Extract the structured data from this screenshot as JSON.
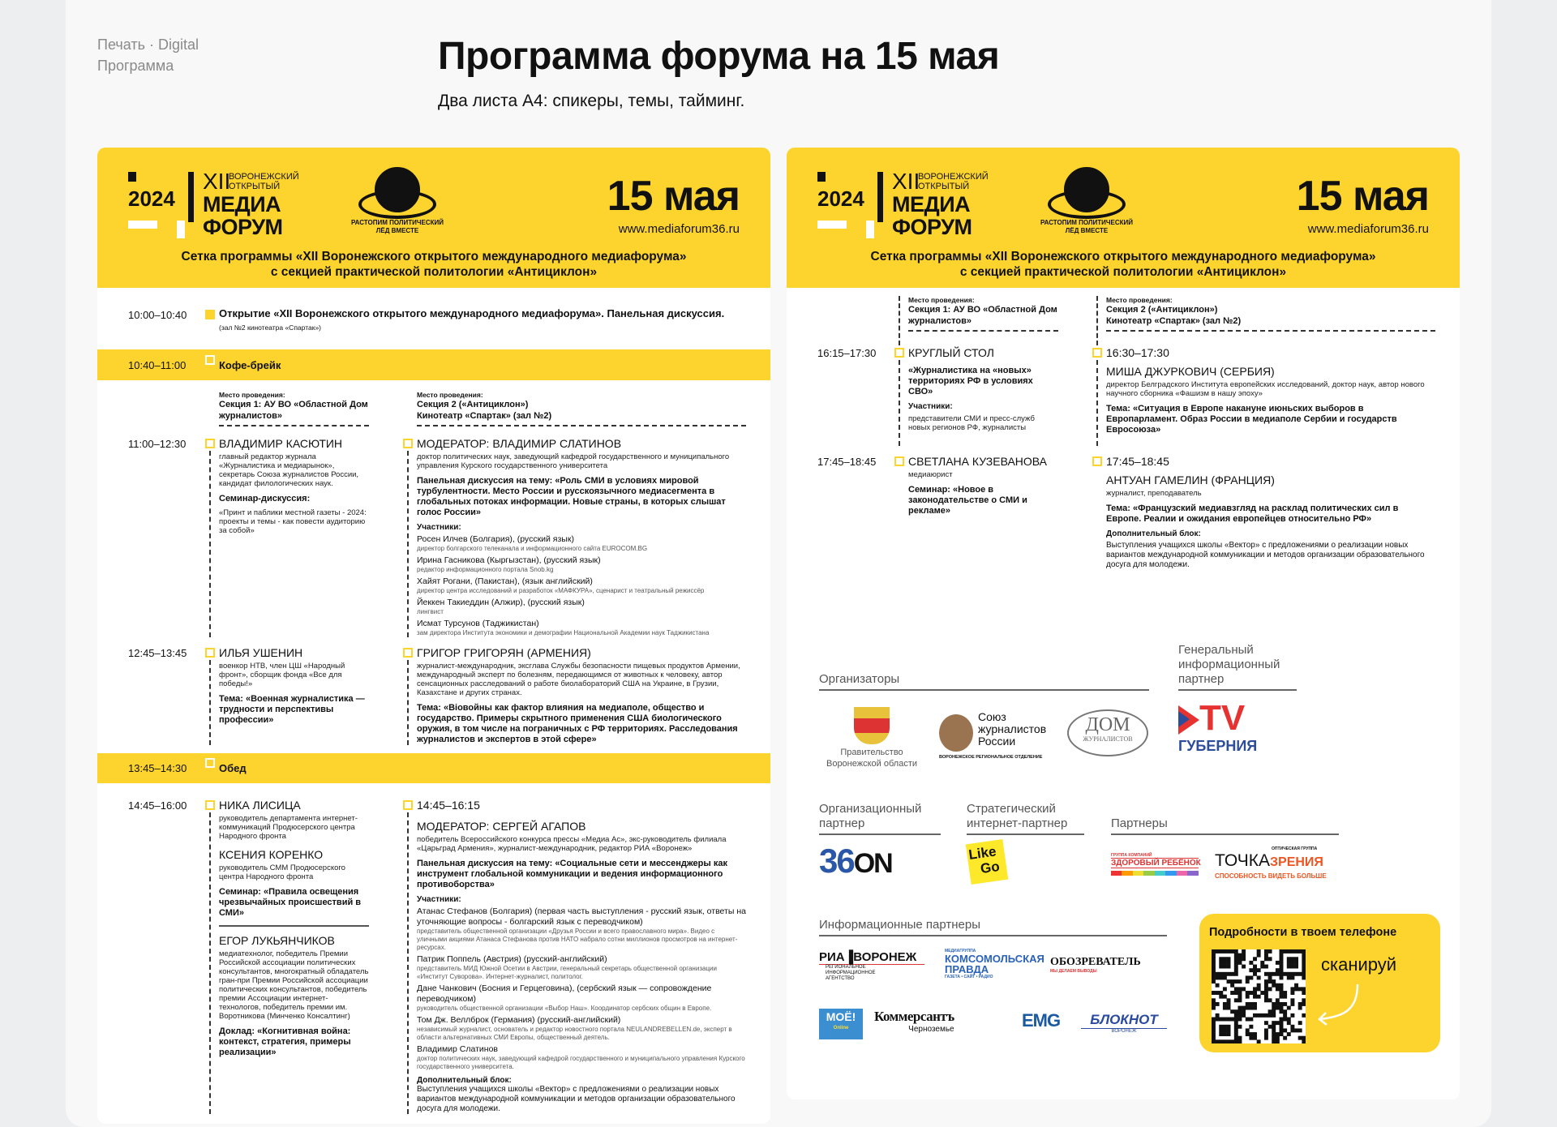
{
  "top": {
    "crumb1": "Печать · Digital",
    "crumb2": "Программа",
    "title": "Программа форума на 15 мая",
    "subtitle": "Два листа А4: спикеры, темы, тайминг."
  },
  "header": {
    "year": "2024",
    "roman": "XII",
    "vo": "ВОРОНЕЖСКИЙ",
    "otk": "ОТКРЫТЫЙ",
    "media": "МЕДИА",
    "forum": "ФОРУМ",
    "emblem_top": "ВОРОНЕЖ 2024",
    "emblem_name": "\"Антициклон\"",
    "emblem_motto": "РАСТОПИМ ПОЛИТИЧЕСКИЙ ЛЁД ВМЕСТЕ",
    "date": "15 мая",
    "url": "www.mediaforum36.ru",
    "title1": "Сетка программы «XII Воронежского открытого международного медиафорума»",
    "title2": "с секцией практической политологии «Антициклон»",
    "color": "#fdd42e"
  },
  "venues": {
    "label": "Место проведения:",
    "s1": "Секция 1: АУ ВО «Областной Дом журналистов»",
    "s2a": "Секция 2 («Антициклон»)",
    "s2b": "Кинотеатр «Спартак» (зал №2)"
  },
  "left": {
    "opening": {
      "time": "10:00–10:40",
      "title": "Открытие «XII Воронежского открытого международного медиафорума». Панельная дискуссия.",
      "place": "(зал №2 кинотеатра «Спартак»)"
    },
    "coffee": {
      "time": "10:40–11:00",
      "label": "Кофе-брейк"
    },
    "s1100": {
      "time": "11:00–12:30",
      "c1": {
        "name": "Владимир Касютин",
        "desc": "главный редактор журнала «Журналистика и медиарынок», секретарь Союза журналистов России, кандидат филологических наук.",
        "type": "Семинар-дискуссия:",
        "topic": "«Принт и паблики местной газеты - 2024: проекты и темы - как повести аудиторию за собой»"
      },
      "c2": {
        "name": "Модератор: Владимир Слатинов",
        "desc": "доктор политических наук, заведующий кафедрой государственного и муниципального управления Курского государственного университета",
        "topic": "Панельная дискуссия на тему: «Роль СМИ в условиях мировой турбулентности. Место России и русскоязычного медиасегмента в глобальных потоках информации. Новые страны, в которых слышат голос России»",
        "plabel": "Участники:",
        "participants": [
          {
            "n": "Росен Илчев (Болгария), (русский язык)",
            "d": "директор болгарского телеканала и информационного сайта EUROCOM.BG"
          },
          {
            "n": "Ирина Гасникова (Кыргызстан), (русский язык)",
            "d": "редактор информационного портала Snob.kg"
          },
          {
            "n": "Хайят Рогани, (Пакистан), (язык английский)",
            "d": "директор центра исследований и разработок «МАФКУРА», сценарист и театральный режиссёр"
          },
          {
            "n": "Йеккен Такиеддин (Алжир), (русский язык)",
            "d": "лингвист"
          },
          {
            "n": "Исмат Турсунов (Таджикистан)",
            "d": "зам директора Института экономики и демографии Национальной Академии наук Таджикистана"
          }
        ]
      }
    },
    "s1245": {
      "time": "12:45–13:45",
      "c1": {
        "name": "Илья Ушенин",
        "desc": "военкор НТВ, член ЦШ «Народный фронт», сборщик фонда «Все для победы!»",
        "topic": "Тема: «Военная журналистика — трудности и перспективы профессии»"
      },
      "c2": {
        "name": "Григор Григорян (Армения)",
        "desc": "журналист-международник, экcглава Службы безопасности пищевых продуктов Армении, международный эксперт по болезням, передающимся от животных к человеку, автор сенсационных расследований о работе биолабораторий США на Украине, в Грузии, Казахстане и других странах.",
        "topic": "Тема: «Biовойны как фактор влияния на медиаполе, общество и государство. Примеры скрытного применения США биологического оружия, в том числе на пограничных с РФ территориях. Расследования журналистов и экспертов в этой сфере»"
      }
    },
    "lunch": {
      "time": "13:45–14:30",
      "label": "Обед"
    },
    "s1445": {
      "time": "14:45–16:00",
      "c1": [
        {
          "name": "Ника Лисица",
          "desc": "руководитель департамента интернет-коммуникаций Продюсерского центра Народного фронта"
        },
        {
          "name": "Ксения Коренко",
          "desc": "руководитель СММ Продюсерского центра Народного фронта",
          "topic": "Семинар: «Правила освещения чрезвычайных происшествий в СМИ»"
        },
        {
          "name": "Егор Лукьянчиков",
          "desc": "медиатехнолог, победитель Премии Российской ассоциации политических консультантов, многократный обладатель гран-при Премии Российской ассоциации политических консультантов, победитель премии Ассоциации интернет-технологов, победитель премии им. Воротникова (Минченко Консалтинг)",
          "topic": "Доклад: «Когнитивная война: контекст, стратегия, примеры реализации»"
        }
      ],
      "c2": {
        "time": "14:45–16:15",
        "name": "Модератор: Сергей Агапов",
        "desc": "победитель Всероссийского конкурса прессы «Медиа Ас», экс-руководитель филиала «Царьград Армения», журналист-международник, редактор РИА «Воронеж»",
        "topic": "Панельная дискуссия на тему: «Социальные сети и мессенджеры как инструмент глобальной коммуникации и ведения информационного противоборства»",
        "plabel": "Участники:",
        "participants": [
          {
            "n": "Атанас Стефанов (Болгария) (первая часть выступления - русский язык, ответы на уточняющие вопросы - болгарский язык с переводчиком)",
            "d": "представитель общественной организации «Друзья России и всего православного мира». Видео с уличными акциями Атанаса Стефанова против НАТО набрало сотни миллионов просмотров на интернет-ресурсах."
          },
          {
            "n": "Патрик Поппель (Австрия) (русский-английский)",
            "d": "представитель МИД Южной Осетии в Австрии, генеральный секретарь общественной организации «Институт Суворова». Интернет-журналист, политолог."
          },
          {
            "n": "Дане Чанкович (Босния и Герцеговина), (сербский язык — сопровождение переводчиком)",
            "d": "руководитель общественной организации «Выбор Наш». Координатор сербских общин в Европе."
          },
          {
            "n": "Том Дж. Веллброк (Германия) (русский-английский)",
            "d": "независимый журналист, основатель и редактор новостного портала NEULANDREBELLEN.de, эксперт в области альтернативных СМИ Европы, общественный деятель."
          },
          {
            "n": "Владимир Слатинов",
            "d": "доктор политических наук, заведующий кафедрой государственного и муниципального управления Курского государственного университета."
          }
        ],
        "extra_label": "Дополнительный блок:",
        "extra": "Выступления учащихся школы «Вектор» с предложениями о реализации новых вариантов международной коммуникации и методов организации образовательного досуга для молодежи."
      }
    }
  },
  "right": {
    "s1615": {
      "time": "16:15–17:30",
      "c1": {
        "name": "Круглый стол",
        "topic": "«Журналистика на «новых» территориях РФ в условиях СВО»",
        "plabel": "Участники:",
        "participants": "представители СМИ и пресс-служб новых регионов РФ, журналисты"
      },
      "c2": {
        "time": "16:30–17:30",
        "name": "Миша Джуркович (Сербия)",
        "desc": "директор Белградского Института европейских исследований, доктор наук, автор нового научного сборника «Фашизм в нашу эпоху»",
        "topic": "Тема: «Ситуация в Европе накануне июньских выборов в Европарламент. Образ России в медиаполе Сербии и государств Евросоюза»"
      }
    },
    "s1745": {
      "time": "17:45–18:45",
      "c1": {
        "name": "Светлана Кузеванова",
        "desc": "медиаюрист",
        "topic": "Семинар: «Новое в законодательстве о СМИ и рекламе»"
      },
      "c2": {
        "time": "17:45–18:45",
        "name": "Антуан Гамелин (Франция)",
        "desc": "журналист, преподаватель",
        "topic": "Тема: «Французский медиавзгляд на расклад политических сил в Европе. Реалии и ожидания европейцев относительно РФ»",
        "extra_label": "Дополнительный блок:",
        "extra": "Выступления учащихся школы «Вектор» с предложениями о реализации новых вариантов международной коммуникации и методов организации образовательного досуга для молодежи."
      }
    },
    "partners": {
      "organizers": "Организаторы",
      "gen_partner": "Генеральный информационный партнер",
      "org_partner": "Организационный партнер",
      "strat_partner": "Стратегический интернет-партнер",
      "partners": "Партнеры",
      "info_partners": "Информационные партнеры",
      "gov": "Правительство Воронежской области",
      "szr1": "Союз",
      "szr2": "журналистов",
      "szr3": "России",
      "szr_sub": "ВОРОНЕЖСКОЕ РЕГИОНАЛЬНОЕ ОТДЕЛЕНИЕ",
      "dom1": "ДОМ",
      "dom2": "ЖУРНАЛИСТОВ",
      "tv": "TV",
      "gub": "ГУБЕРНИЯ",
      "on36a": "36",
      "on36b": "ON",
      "like": "Like",
      "go": "Go",
      "zr_top": "ГРУППА КОМПАНИЙ",
      "zr": "ЗДОРОВЫЙ РЕБЁНОК",
      "tz_top": "ОПТИЧЕСКАЯ ГРУППА",
      "tz1": "ТОЧКА",
      "tz2": "ЗРЕНИЯ",
      "tz_sub": "СПОСОБНОСТЬ ВИДЕТЬ БОЛЬШЕ",
      "ria": "РИА▐ВОРОНЕЖ",
      "ria_sub": "РЕГИОНАЛЬНОЕ ИНФОРМАЦИОННОЕ АГЕНТСТВО",
      "kp_top": "МЕДИАГРУППА",
      "kp": "КОМСОМОЛЬСКАЯ ПРАВДА",
      "kp_sub": "ГАЗЕТА • САЙТ • РАДИО",
      "obz": "ОБОЗРЕВАТЕЛЬ",
      "obz_sub": "МЫ ДЕЛАЕМ ВЫВОДЫ",
      "moe": "МОЁ!",
      "moe_sub": "Online",
      "kom": "Коммерсантъ",
      "kom_sub": "Черноземье",
      "emg": "EMG",
      "blok": "БЛОКНОТ",
      "blok_sub": "ВОРОНЕЖ"
    },
    "qr": {
      "title": "Подробности в твоем телефоне",
      "scan": "сканируй"
    }
  }
}
